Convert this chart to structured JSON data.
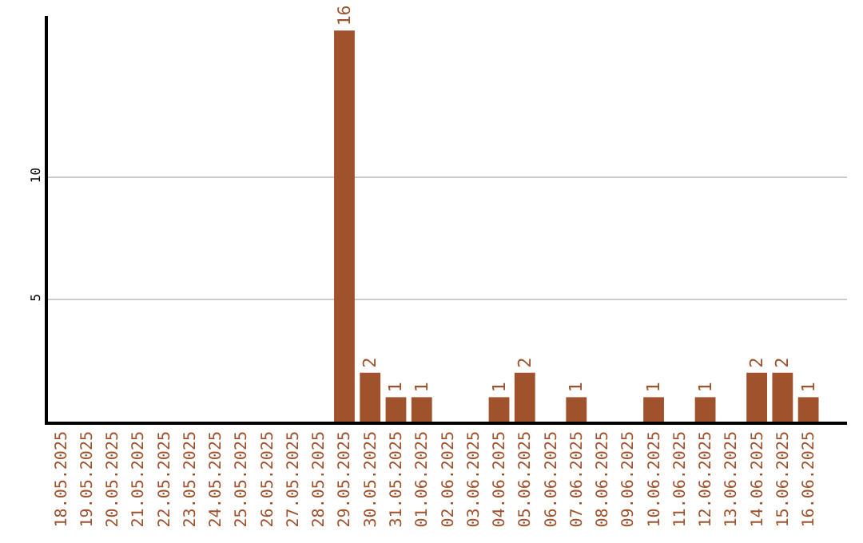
{
  "chart_data": {
    "type": "bar",
    "categories": [
      "18.05.2025",
      "19.05.2025",
      "20.05.2025",
      "21.05.2025",
      "22.05.2025",
      "23.05.2025",
      "24.05.2025",
      "25.05.2025",
      "26.05.2025",
      "27.05.2025",
      "28.05.2025",
      "29.05.2025",
      "30.05.2025",
      "31.05.2025",
      "01.06.2025",
      "02.06.2025",
      "03.06.2025",
      "04.06.2025",
      "05.06.2025",
      "06.06.2025",
      "07.06.2025",
      "08.06.2025",
      "09.06.2025",
      "10.06.2025",
      "11.06.2025",
      "12.06.2025",
      "13.06.2025",
      "14.06.2025",
      "15.06.2025",
      "16.06.2025"
    ],
    "values": [
      0,
      0,
      0,
      0,
      0,
      0,
      0,
      0,
      0,
      0,
      0,
      16,
      2,
      1,
      1,
      0,
      0,
      1,
      2,
      0,
      1,
      0,
      0,
      1,
      0,
      1,
      0,
      2,
      2,
      1
    ],
    "value_labels": [
      null,
      null,
      null,
      null,
      null,
      null,
      null,
      null,
      null,
      null,
      null,
      "16",
      "2",
      "1",
      "1",
      null,
      null,
      "1",
      "2",
      null,
      "1",
      null,
      null,
      "1",
      null,
      "1",
      null,
      "2",
      "2",
      "1"
    ],
    "color": "#a0522d",
    "ylim": [
      0,
      16.6
    ],
    "yticks": [
      5,
      10
    ],
    "grid": "y"
  }
}
